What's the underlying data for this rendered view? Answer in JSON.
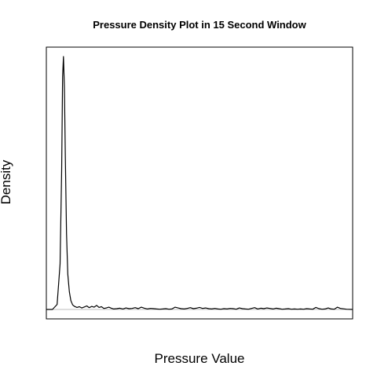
{
  "chart_data": {
    "type": "line",
    "title": "Pressure Density Plot in 15 Second Window",
    "xlabel": "Pressure Value",
    "ylabel": "Density",
    "xlim": [
      0,
      100
    ],
    "ylim": [
      0,
      100
    ],
    "axes_tick_labels_shown": false,
    "baseline": 0,
    "colors": {
      "line": "#000000",
      "baseline": "#bebebe",
      "frame": "#000000"
    },
    "series": [
      {
        "x": [
          0.0,
          2.0,
          3.5,
          4.5,
          5.0,
          5.3,
          5.6,
          5.9,
          6.2,
          6.6,
          7.0,
          7.5,
          8.0,
          8.6,
          9.2,
          10.0,
          10.8,
          11.6,
          12.4,
          13.2,
          14.0,
          14.8,
          15.6,
          16.4,
          17.2,
          18.0,
          18.8,
          19.6,
          20.4,
          21.2,
          22.0,
          23.0,
          24.0,
          25.0,
          26.0,
          27.0,
          28.0,
          29.0,
          30.0,
          31.0,
          32.0,
          33.0,
          34.0,
          35.0,
          36.0,
          37.0,
          38.0,
          39.0,
          40.0,
          41.0,
          42.0,
          43.0,
          44.0,
          45.0,
          46.0,
          47.0,
          48.0,
          49.0,
          50.0,
          51.0,
          52.0,
          53.0,
          54.0,
          55.0,
          56.0,
          57.0,
          58.0,
          59.0,
          60.0,
          61.0,
          62.0,
          63.0,
          64.0,
          65.0,
          66.0,
          67.0,
          68.0,
          69.0,
          70.0,
          71.0,
          72.0,
          73.0,
          74.0,
          75.0,
          76.0,
          77.0,
          78.0,
          79.0,
          80.0,
          81.0,
          82.0,
          83.0,
          84.0,
          85.0,
          86.0,
          87.0,
          88.0,
          89.0,
          90.0,
          91.0,
          92.0,
          93.0,
          94.0,
          95.0,
          96.0,
          98.0,
          100.0
        ],
        "y": [
          0.0,
          0.0,
          2.0,
          18.0,
          55.0,
          92.0,
          100.0,
          88.0,
          60.0,
          30.0,
          14.0,
          7.0,
          3.5,
          1.8,
          1.2,
          0.8,
          1.1,
          0.6,
          1.0,
          1.4,
          0.7,
          1.2,
          0.9,
          1.6,
          0.8,
          1.1,
          0.4,
          0.6,
          0.9,
          0.5,
          0.2,
          0.3,
          0.5,
          0.2,
          0.6,
          0.3,
          0.4,
          0.7,
          0.3,
          0.9,
          0.5,
          0.2,
          0.4,
          0.3,
          0.2,
          0.1,
          0.2,
          0.3,
          0.1,
          0.2,
          0.9,
          0.6,
          0.3,
          0.2,
          0.4,
          0.7,
          0.3,
          0.5,
          0.8,
          0.4,
          0.6,
          0.3,
          0.2,
          0.4,
          0.2,
          0.1,
          0.3,
          0.2,
          0.4,
          0.3,
          0.1,
          0.6,
          0.3,
          0.2,
          0.1,
          0.4,
          0.7,
          0.2,
          0.5,
          0.3,
          0.6,
          0.4,
          0.2,
          0.5,
          0.3,
          0.1,
          0.2,
          0.3,
          0.1,
          0.2,
          0.1,
          0.2,
          0.1,
          0.3,
          0.2,
          0.1,
          0.8,
          0.3,
          0.1,
          0.2,
          0.6,
          0.2,
          0.1,
          0.9,
          0.4,
          0.1,
          0.0
        ]
      }
    ]
  }
}
